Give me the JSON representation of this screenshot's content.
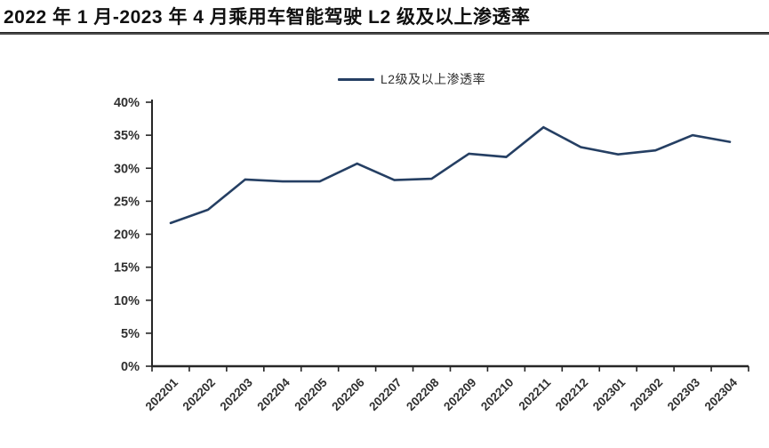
{
  "header": {
    "title": "2022 年 1 月-2023 年 4 月乘用车智能驾驶 L2 级及以上渗透率"
  },
  "legend": {
    "label": "L2级及以上渗透率"
  },
  "colors": {
    "line": "#253f63",
    "axis": "#262626",
    "tick_label": "#303030",
    "divider": "#4a4a4a"
  },
  "chart_data": {
    "type": "line",
    "title": "2022 年 1 月-2023 年 4 月乘用车智能驾驶 L2 级及以上渗透率",
    "categories": [
      "202201",
      "202202",
      "202203",
      "202204",
      "202205",
      "202206",
      "202207",
      "202208",
      "202209",
      "202210",
      "202211",
      "202212",
      "202301",
      "202302",
      "202303",
      "202304"
    ],
    "series": [
      {
        "name": "L2级及以上渗透率",
        "values": [
          21.7,
          23.7,
          28.3,
          28.0,
          28.0,
          30.7,
          28.2,
          28.4,
          32.2,
          31.7,
          36.2,
          33.2,
          32.1,
          32.7,
          35.0,
          34.0
        ]
      }
    ],
    "xlabel": "",
    "ylabel": "",
    "ylim": [
      0,
      40
    ],
    "ytick_step": 5,
    "ytick_suffix": "%",
    "grid": false,
    "legend_position": "top-center",
    "x_label_rotation": -45
  }
}
